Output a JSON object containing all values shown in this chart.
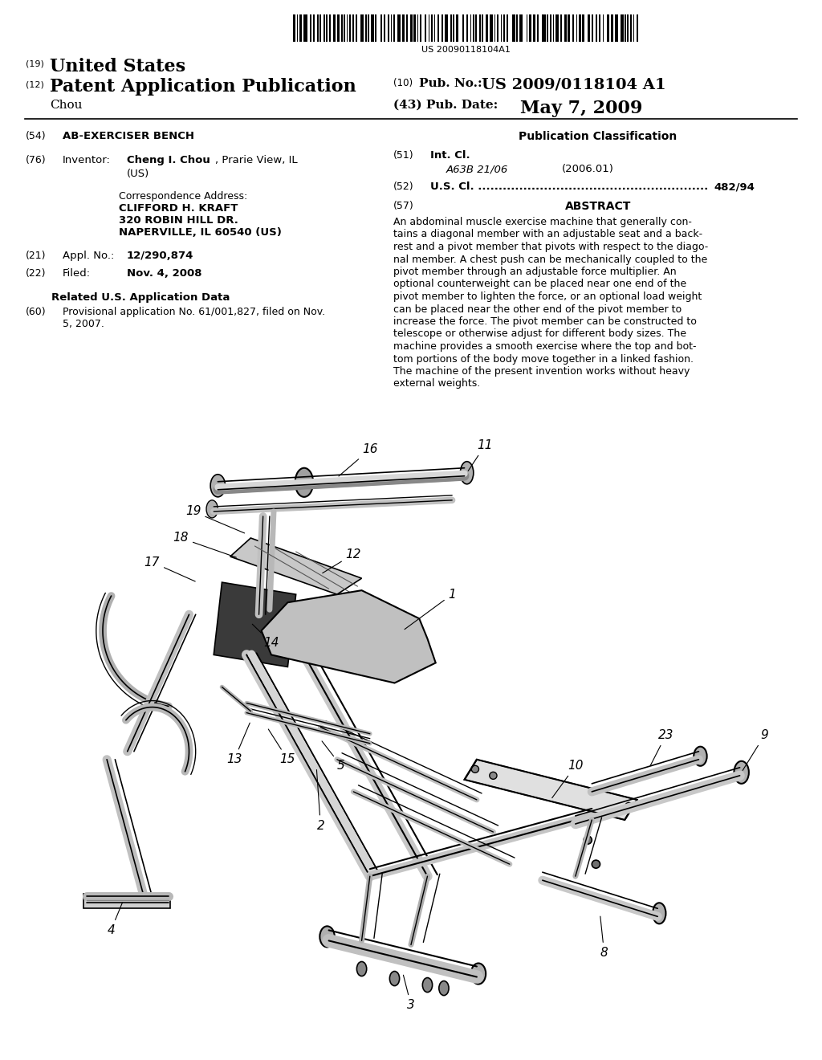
{
  "background_color": "#ffffff",
  "barcode_number": "US 20090118104A1",
  "line19": "(19)",
  "line19_text": "United States",
  "line12": "(12)",
  "line12_text": "Patent Application Publication",
  "line10": "(10)",
  "line10_pub": "Pub. No.:",
  "line10_value": "US 2009/0118104 A1",
  "author": "Chou",
  "line43_label": "(43) Pub. Date:",
  "line43_value": "May 7, 2009",
  "title_num": "(54)",
  "title_text": "AB-EXERCISER BENCH",
  "pub_class_header": "Publication Classification",
  "int_cl_num": "(51)",
  "int_cl_bold": "Int. Cl.",
  "int_cl_class": "A63B 21/06",
  "int_cl_date": "(2006.01)",
  "us_cl_num": "(52)",
  "us_cl_text": "U.S. Cl. ........................................................",
  "us_cl_value": "482/94",
  "abstract_num": "(57)",
  "abstract_header": "ABSTRACT",
  "abstract_text": "An abdominal muscle exercise machine that generally contains a diagonal member with an adjustable seat and a backrest and a pivot member that pivots with respect to the diagonal member. A chest push can be mechanically coupled to the pivot member through an adjustable force multiplier. An optional counterweight can be placed near one end of the pivot member to lighten the force, or an optional load weight can be placed near the other end of the pivot member to increase the force. The pivot member can be constructed to telescope or otherwise adjust for different body sizes. The machine provides a smooth exercise where the top and bottom portions of the body move together in a linked fashion. The machine of the present invention works without heavy external weights.",
  "inv_num": "(76)",
  "inv_label": "Inventor:",
  "inv_name": "Cheng I. Chou",
  "inv_city": ", Prarie View, IL",
  "inv_country": "(US)",
  "corr_header": "Correspondence Address:",
  "corr_name": "CLIFFORD H. KRAFT",
  "corr_addr1": "320 ROBIN HILL DR.",
  "corr_addr2": "NAPERVILLE, IL 60540 (US)",
  "appl_num": "(21)",
  "appl_label": "Appl. No.:",
  "appl_value": "12/290,874",
  "filed_num": "(22)",
  "filed_label": "Filed:",
  "filed_value": "Nov. 4, 2008",
  "related_header": "Related U.S. Application Data",
  "prov_num": "(60)",
  "prov_text1": "Provisional application No. 61/001,827, filed on Nov.",
  "prov_text2": "5, 2007."
}
